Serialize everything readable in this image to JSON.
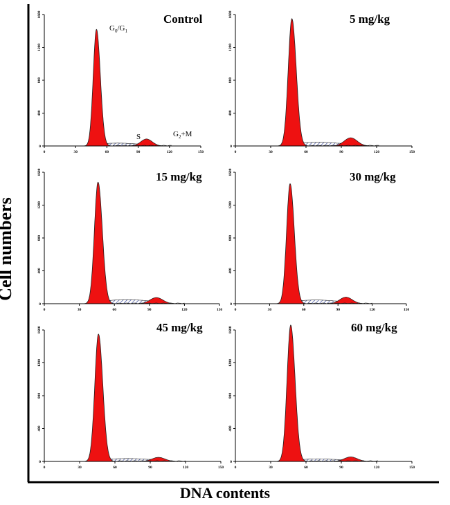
{
  "figure": {
    "ylabel": "Cell numbers",
    "xlabel": "DNA contents"
  },
  "colors": {
    "g0g1_fill": "#ee1111",
    "g2m_fill": "#ee1111",
    "s_phase_hatch": "#3a4a9e",
    "outline": "#222222",
    "axis": "#000000"
  },
  "chart_data": [
    {
      "type": "area",
      "title": "Control",
      "xlim": [
        0,
        150
      ],
      "ylim": [
        0,
        1600
      ],
      "xticks": [
        0,
        30,
        60,
        90,
        120,
        150
      ],
      "yticks": [
        400,
        800,
        1200,
        1600
      ],
      "g0g1_peak": {
        "x": 50,
        "height": 1420
      },
      "g2m_peak": {
        "x": 98,
        "height": 85
      },
      "s_phase_level": 35,
      "annotations": [
        {
          "text": "G0/G1",
          "main": "G",
          "sub": "0",
          "rest": "/G",
          "sub2": "1"
        },
        {
          "text": "S"
        },
        {
          "text": "G2+M",
          "main": "G",
          "sub": "2",
          "rest": "+M"
        }
      ]
    },
    {
      "type": "area",
      "title": "5 mg/kg",
      "xlim": [
        0,
        150
      ],
      "ylim": [
        0,
        1600
      ],
      "xticks": [
        0,
        30,
        60,
        90,
        120,
        150
      ],
      "yticks": [
        400,
        800,
        1200,
        1600
      ],
      "g0g1_peak": {
        "x": 48,
        "height": 1550
      },
      "g2m_peak": {
        "x": 98,
        "height": 100
      },
      "s_phase_level": 45
    },
    {
      "type": "area",
      "title": "15 mg/kg",
      "xlim": [
        0,
        150
      ],
      "ylim": [
        0,
        1600
      ],
      "xticks": [
        0,
        30,
        60,
        90,
        120,
        150
      ],
      "yticks": [
        400,
        800,
        1200,
        1600
      ],
      "g0g1_peak": {
        "x": 46,
        "height": 1480
      },
      "g2m_peak": {
        "x": 96,
        "height": 75
      },
      "s_phase_level": 50
    },
    {
      "type": "area",
      "title": "30 mg/kg",
      "xlim": [
        0,
        150
      ],
      "ylim": [
        0,
        1600
      ],
      "xticks": [
        0,
        30,
        60,
        90,
        120,
        150
      ],
      "yticks": [
        400,
        800,
        1200,
        1600
      ],
      "g0g1_peak": {
        "x": 48,
        "height": 1460
      },
      "g2m_peak": {
        "x": 97,
        "height": 80
      },
      "s_phase_level": 45
    },
    {
      "type": "area",
      "title": "45 mg/kg",
      "xlim": [
        0,
        150
      ],
      "ylim": [
        0,
        1600
      ],
      "xticks": [
        0,
        30,
        60,
        90,
        120,
        150
      ],
      "yticks": [
        400,
        800,
        1200,
        1600
      ],
      "g0g1_peak": {
        "x": 46,
        "height": 1550
      },
      "g2m_peak": {
        "x": 97,
        "height": 50
      },
      "s_phase_level": 35
    },
    {
      "type": "area",
      "title": "60 mg/kg",
      "xlim": [
        0,
        150
      ],
      "ylim": [
        0,
        1600
      ],
      "xticks": [
        0,
        30,
        60,
        90,
        120,
        150
      ],
      "yticks": [
        400,
        800,
        1200,
        1600
      ],
      "g0g1_peak": {
        "x": 47,
        "height": 1660
      },
      "g2m_peak": {
        "x": 98,
        "height": 55
      },
      "s_phase_level": 30
    }
  ]
}
